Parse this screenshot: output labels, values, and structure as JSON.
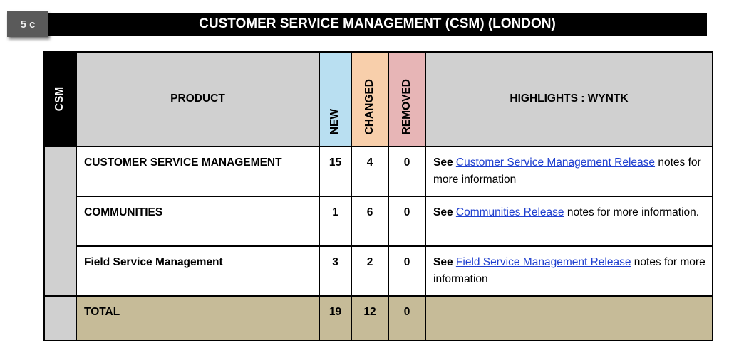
{
  "header": {
    "section": "5 c",
    "title": "CUSTOMER SERVICE MANAGEMENT (CSM) (LONDON)"
  },
  "table": {
    "side_label": "CSM",
    "columns": {
      "product": "PRODUCT",
      "new": "NEW",
      "changed": "CHANGED",
      "removed": "REMOVED",
      "highlights": "HIGHLIGHTS : WYNTK"
    },
    "colors": {
      "new": "#b9dff1",
      "changed": "#f8cfab",
      "removed": "#e7b5b6",
      "header": "#d0d0d0",
      "total": "#c6bb98",
      "link": "#1f3fcf"
    },
    "rows": [
      {
        "product": "CUSTOMER SERVICE MANAGEMENT",
        "new": "15",
        "changed": "4",
        "removed": "0",
        "see": "See",
        "link": "Customer Service Management Release",
        "after": "notes for more information"
      },
      {
        "product": "COMMUNITIES",
        "new": "1",
        "changed": "6",
        "removed": "0",
        "see": "See",
        "link": "Communities Release",
        "after": "notes for more information."
      },
      {
        "product": "Field Service Management",
        "new": "3",
        "changed": "2",
        "removed": "0",
        "see": "See",
        "link": "Field Service Management Release",
        "after": "notes for more information"
      }
    ],
    "total": {
      "label": "TOTAL",
      "new": "19",
      "changed": "12",
      "removed": "0"
    }
  }
}
